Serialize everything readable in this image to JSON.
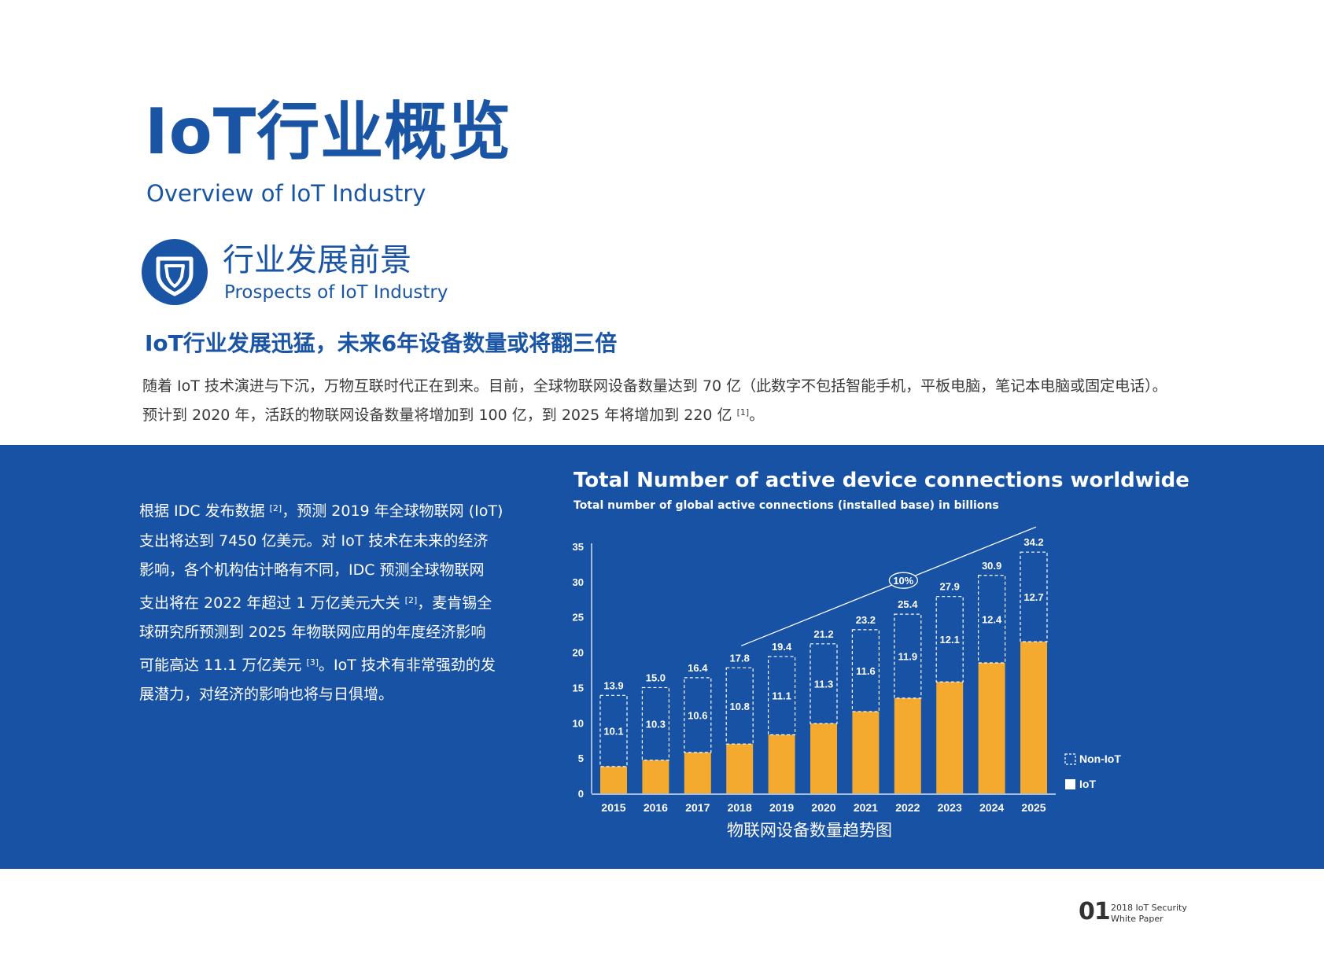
{
  "header": {
    "title": "IoT行业概览",
    "subtitle": "Overview of IoT Industry"
  },
  "section": {
    "icon": "shield-icon",
    "title": "行业发展前景",
    "subtitle": "Prospects of IoT Industry"
  },
  "headline": "IoT行业发展迅猛，未来6年设备数量或将翻三倍",
  "intro": {
    "line1": "随着 IoT 技术演进与下沉，万物互联时代正在到来。目前，全球物联网设备数量达到 70 亿（此数字不包括智能手机，平板电脑，笔记本电脑或固定电话）。",
    "line2_a": "预计到 2020 年，活跃的物联网设备数量将增加到 100 亿，到 2025 年将增加到 220 亿",
    "line2_ref": "[1]",
    "line2_b": "。"
  },
  "band": {
    "l1_a": "根据 IDC 发布数据",
    "l1_ref": "[2]",
    "l1_b": "，预测 2019 年全球物联网 (IoT)",
    "l2": "支出将达到 7450 亿美元。对 IoT 技术在未来的经济",
    "l3": "影响，各个机构估计略有不同，IDC 预测全球物联网",
    "l4_a": "支出将在 2022 年超过 1 万亿美元大关",
    "l4_ref": "[2]",
    "l4_b": "，麦肯锡全",
    "l5": "球研究所预测到 2025 年物联网应用的年度经济影响",
    "l6_a": "可能高达 11.1 万亿美元",
    "l6_ref": "[3]",
    "l6_b": "。IoT 技术有非常强劲的发",
    "l7": "展潜力，对经济的影响也将与日俱增。"
  },
  "chart_data": {
    "type": "bar",
    "title": "Total Number of active device connections worldwide",
    "subtitle": "Total number of global active connections (installed base) in billions",
    "caption": "物联网设备数量趋势图",
    "categories": [
      "2015",
      "2016",
      "2017",
      "2018",
      "2019",
      "2020",
      "2021",
      "2022",
      "2023",
      "2024",
      "2025"
    ],
    "series": [
      {
        "name": "IoT",
        "values": [
          3.8,
          4.7,
          5.8,
          7.0,
          8.3,
          9.9,
          11.6,
          13.5,
          15.8,
          18.5,
          21.5
        ]
      },
      {
        "name": "Non-IoT",
        "values": [
          10.1,
          10.3,
          10.6,
          10.8,
          11.1,
          11.3,
          11.6,
          11.9,
          12.1,
          12.4,
          12.7
        ]
      }
    ],
    "non_iot_labels": [
      "10.1",
      "10.3",
      "10.6",
      "10.8",
      "11.1",
      "11.3",
      "11.6",
      "11.9",
      "12.1",
      "12.4",
      "12.7"
    ],
    "totals": [
      "13.9",
      "15.0",
      "16.4",
      "17.8",
      "19.4",
      "21.2",
      "23.2",
      "25.4",
      "27.9",
      "30.9",
      "34.2"
    ],
    "total_values": [
      13.9,
      15.0,
      16.4,
      17.8,
      19.4,
      21.2,
      23.2,
      25.4,
      27.9,
      30.9,
      34.2
    ],
    "yticks": [
      "0",
      "5",
      "10",
      "15",
      "20",
      "25",
      "30",
      "35"
    ],
    "ylim": [
      0,
      35
    ],
    "trend_label": "10%",
    "trend_from": "2018",
    "trend_to": "2025",
    "legend_position": "bottom-right",
    "colors": {
      "iot": "#f4aa2e",
      "non_iot_border": "#ffffff",
      "background": "#1852a4"
    }
  },
  "footer": {
    "page": "01",
    "line1": "2018 IoT Security",
    "line2": "White Paper"
  }
}
